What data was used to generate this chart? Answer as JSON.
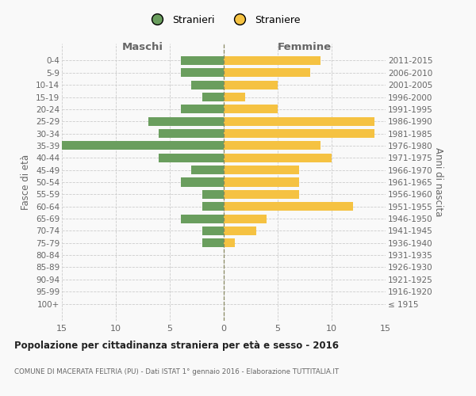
{
  "age_groups": [
    "100+",
    "95-99",
    "90-94",
    "85-89",
    "80-84",
    "75-79",
    "70-74",
    "65-69",
    "60-64",
    "55-59",
    "50-54",
    "45-49",
    "40-44",
    "35-39",
    "30-34",
    "25-29",
    "20-24",
    "15-19",
    "10-14",
    "5-9",
    "0-4"
  ],
  "birth_years": [
    "≤ 1915",
    "1916-1920",
    "1921-1925",
    "1926-1930",
    "1931-1935",
    "1936-1940",
    "1941-1945",
    "1946-1950",
    "1951-1955",
    "1956-1960",
    "1961-1965",
    "1966-1970",
    "1971-1975",
    "1976-1980",
    "1981-1985",
    "1986-1990",
    "1991-1995",
    "1996-2000",
    "2001-2005",
    "2006-2010",
    "2011-2015"
  ],
  "maschi": [
    0,
    0,
    0,
    0,
    0,
    2,
    2,
    4,
    2,
    2,
    4,
    3,
    6,
    15,
    6,
    7,
    4,
    2,
    3,
    4,
    4
  ],
  "femmine": [
    0,
    0,
    0,
    0,
    0,
    1,
    3,
    4,
    12,
    7,
    7,
    7,
    10,
    9,
    14,
    14,
    5,
    2,
    5,
    8,
    9
  ],
  "color_maschi": "#6a9e5e",
  "color_femmine": "#f5c242",
  "title": "Popolazione per cittadinanza straniera per età e sesso - 2016",
  "subtitle": "COMUNE DI MACERATA FELTRIA (PU) - Dati ISTAT 1° gennaio 2016 - Elaborazione TUTTITALIA.IT",
  "label_left": "Maschi",
  "label_right": "Femmine",
  "ylabel_left": "Fasce di età",
  "ylabel_right": "Anni di nascita",
  "legend_maschi": "Stranieri",
  "legend_femmine": "Straniere",
  "xlim": 15,
  "bg_color": "#f9f9f9",
  "grid_color": "#cccccc",
  "text_color": "#666666"
}
